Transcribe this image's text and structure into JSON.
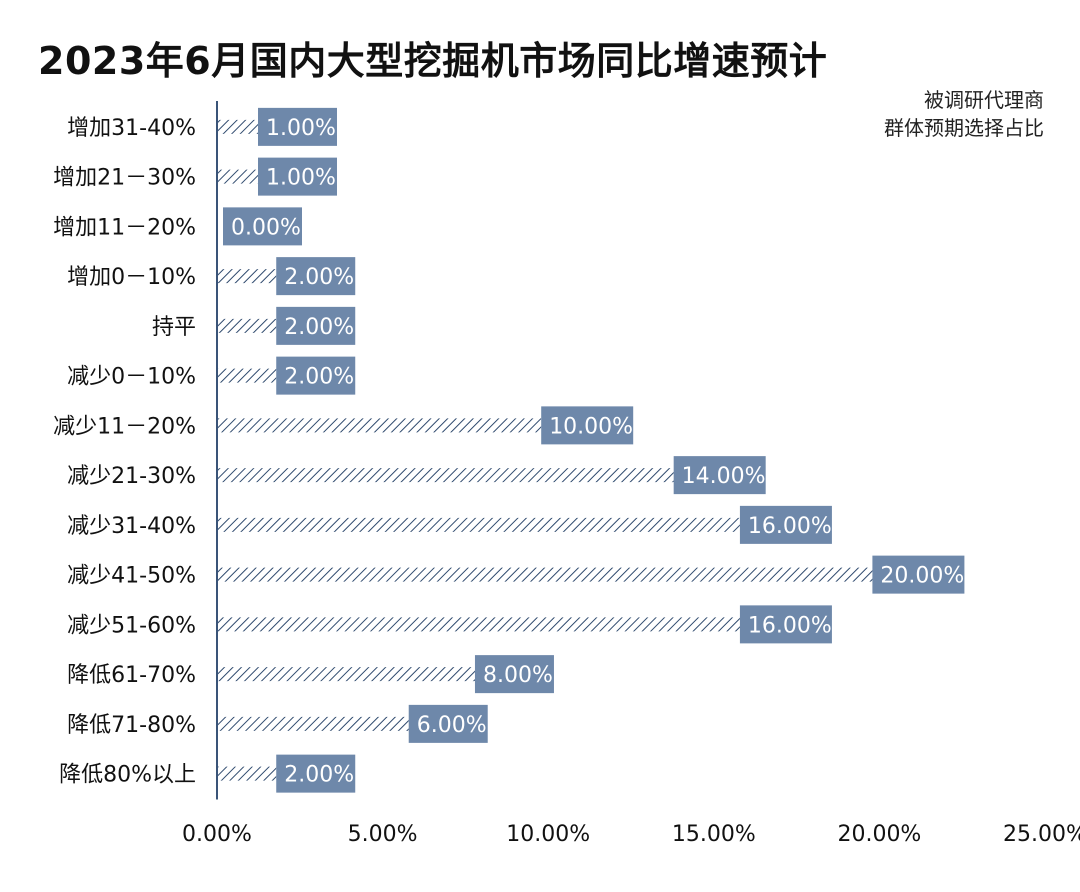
{
  "chart_data": {
    "type": "bar",
    "orientation": "horizontal",
    "title": "2023年6月国内大型挖掘机市场同比增速预计",
    "legend_text": [
      "被调研代理商",
      "群体预期选择占比"
    ],
    "legend_position": "top-right",
    "categories": [
      "增加31-40%",
      "增加21－30%",
      "增加11－20%",
      "增加0－10%",
      "持平",
      "减少0－10%",
      "减少11－20%",
      "减少21-30%",
      "减少31-40%",
      "减少41-50%",
      "减少51-60%",
      "降低61-70%",
      "降低71-80%",
      "降低80%以上"
    ],
    "values": [
      1,
      1,
      0,
      2,
      2,
      2,
      10,
      14,
      16,
      20,
      16,
      8,
      6,
      2
    ],
    "data_labels": [
      "1.00%",
      "1.00%",
      "0.00%",
      "2.00%",
      "2.00%",
      "2.00%",
      "10.00%",
      "14.00%",
      "16.00%",
      "20.00%",
      "16.00%",
      "8.00%",
      "6.00%",
      "2.00%"
    ],
    "x_ticks": [
      "0.00%",
      "5.00%",
      "10.00%",
      "15.00%",
      "20.00%",
      "25.00%"
    ],
    "xlim": [
      0,
      25
    ],
    "grid": false,
    "colors": {
      "bar_hatch": "#2f4a6e",
      "label_box": "#6e88aa",
      "axis": "#3a5478"
    }
  }
}
